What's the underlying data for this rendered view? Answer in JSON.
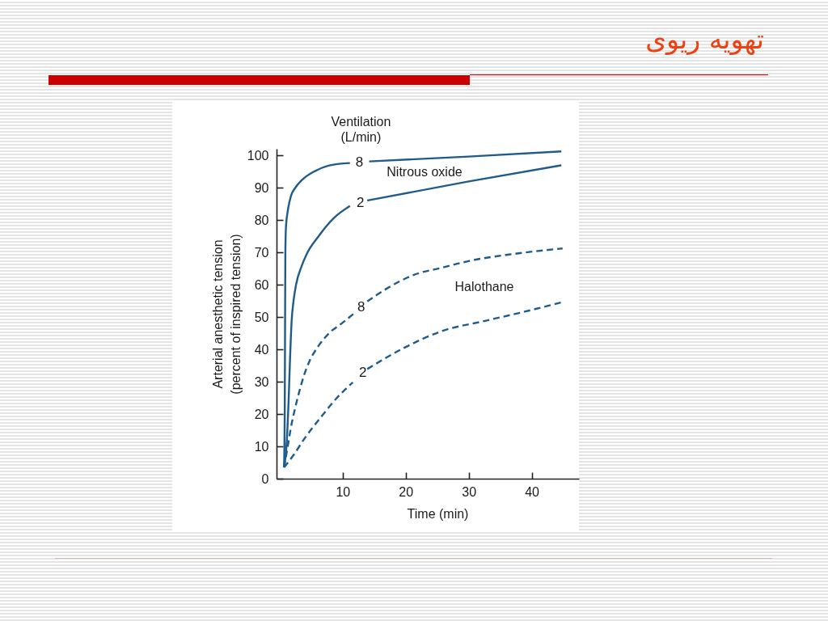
{
  "chart_data": {
    "type": "line",
    "title": "تهویه ریوی",
    "xlabel": "Time (min)",
    "ylabel": "Arterial anesthetic tension\n(percent of inspired tension)",
    "legend_title": "Ventilation\n(L/min)",
    "xlim": [
      -0.5,
      47.5
    ],
    "xticks": [
      10,
      20,
      30,
      40
    ],
    "ylim": [
      0,
      102
    ],
    "yticks": [
      0,
      10,
      20,
      30,
      40,
      50,
      60,
      70,
      80,
      90,
      100
    ],
    "series": [
      {
        "name": "8",
        "color": "#1f5c8b",
        "line_style": "solid",
        "x": [
          0.69,
          0.8,
          0.85,
          0.9,
          1.0,
          1.3,
          1.76,
          2.5,
          3.46,
          5.6,
          7.74,
          11.15,
          12.65,
          14.2,
          30,
          44.7
        ],
        "values": [
          3.5,
          20,
          45,
          70,
          78,
          83,
          87.2,
          90,
          92.2,
          95.1,
          96.8,
          97.6,
          null,
          98.1,
          99.6,
          101.2
        ]
      },
      {
        "name": "2",
        "color": "#1f5c8b",
        "line_style": "solid",
        "x": [
          0.69,
          1.12,
          1.41,
          1.63,
          1.9,
          2.2,
          2.6,
          3.46,
          4.3,
          6.0,
          8.6,
          11.15,
          12.8,
          13.9,
          30,
          44.7
        ],
        "values": [
          3.5,
          11.4,
          23.9,
          36.4,
          48.9,
          55,
          60,
          65.6,
          69.5,
          74.5,
          80.6,
          84.3,
          null,
          86,
          91.9,
          96.9
        ]
      },
      {
        "name": "8",
        "color": "#1f5c8b",
        "line_style": "dashed",
        "x": [
          0.69,
          1.33,
          1.76,
          2.4,
          3.04,
          3.9,
          4.74,
          6.0,
          7.74,
          9.9,
          12.0,
          12.95,
          13.9,
          17.1,
          21.4,
          25.7,
          30,
          36.4,
          44.9
        ],
        "values": [
          3.5,
          10.6,
          15.6,
          21.4,
          26.4,
          32.2,
          36.4,
          40.6,
          44.8,
          48.1,
          51.4,
          null,
          54.8,
          58.9,
          63.1,
          65.2,
          67.3,
          69.3,
          71.2
        ]
      },
      {
        "name": "2",
        "color": "#1f5c8b",
        "line_style": "dashed",
        "x": [
          0.69,
          2.2,
          3.9,
          6.5,
          9.0,
          11.6,
          13.2,
          13.9,
          19.7,
          25.7,
          32.6,
          39,
          44.9
        ],
        "values": [
          3.5,
          7.3,
          12.3,
          18.9,
          24.8,
          29.8,
          null,
          33.9,
          40.4,
          45.6,
          48.8,
          51.7,
          54.6
        ]
      }
    ],
    "annotations": [
      "Nitrous oxide",
      "Halothane"
    ]
  }
}
